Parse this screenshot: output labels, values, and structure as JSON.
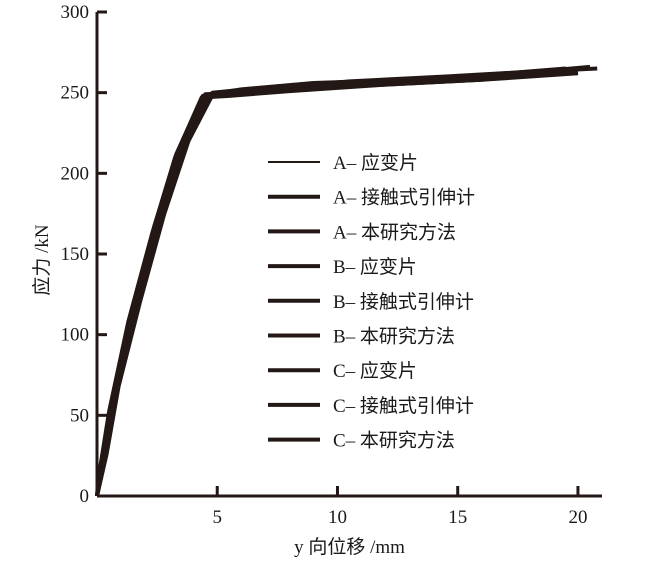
{
  "chart_data": {
    "type": "line",
    "xlabel": "y 向位移 /mm",
    "ylabel": "应力 /kN",
    "xlim": [
      0,
      21
    ],
    "ylim": [
      0,
      300
    ],
    "xticks": [
      5,
      10,
      15,
      20
    ],
    "yticks": [
      0,
      50,
      100,
      150,
      200,
      250,
      300
    ],
    "grid": false,
    "legend_placement": "center",
    "series_color": "#231815",
    "series": [
      {
        "name": "A– 应变片",
        "x": [
          0,
          0.2,
          0.7,
          1.5,
          2.5,
          3.5,
          4.6,
          5.5,
          8,
          12,
          16,
          18,
          20
        ],
        "y": [
          0,
          18,
          60,
          115,
          170,
          215,
          248,
          249,
          252,
          255,
          258,
          261,
          263
        ]
      },
      {
        "name": "A– 接触式引伸计",
        "x": [
          0,
          0.15,
          0.6,
          1.4,
          2.4,
          3.4,
          4.5,
          5.8,
          8.5,
          12.5,
          16.5,
          19
        ],
        "y": [
          0,
          15,
          58,
          113,
          168,
          214,
          249,
          250,
          254,
          257,
          261,
          264
        ]
      },
      {
        "name": "A– 本研究方法",
        "x": [
          0,
          0.25,
          0.75,
          1.6,
          2.6,
          3.6,
          4.7,
          6,
          9,
          13,
          17,
          19.5
        ],
        "y": [
          0,
          20,
          62,
          116,
          171,
          216,
          249,
          252,
          256,
          258,
          262,
          265
        ]
      },
      {
        "name": "B– 应变片",
        "x": [
          0,
          0.3,
          0.8,
          1.7,
          2.7,
          3.7,
          4.8,
          6.2,
          9.5,
          13.5,
          17.5,
          20.5
        ],
        "y": [
          0,
          22,
          64,
          118,
          172,
          218,
          250,
          252,
          256,
          259,
          262,
          266
        ]
      },
      {
        "name": "B– 接触式引伸计",
        "x": [
          0,
          0.1,
          0.55,
          1.35,
          2.35,
          3.3,
          4.4,
          5.2,
          7.5,
          11.5,
          15.5,
          18.5
        ],
        "y": [
          0,
          12,
          55,
          110,
          165,
          212,
          248,
          249,
          253,
          256,
          259,
          263
        ]
      },
      {
        "name": "B– 本研究方法",
        "x": [
          0,
          0.35,
          0.85,
          1.75,
          2.75,
          3.75,
          4.75,
          6.5,
          10,
          14,
          18
        ],
        "y": [
          0,
          24,
          66,
          119,
          173,
          219,
          249,
          250,
          255,
          258,
          261
        ]
      },
      {
        "name": "C– 应变片",
        "x": [
          0,
          0.05,
          0.5,
          1.3,
          2.3,
          3.25,
          4.35,
          5.5,
          8,
          12,
          16,
          20
        ],
        "y": [
          0,
          10,
          52,
          108,
          163,
          210,
          247,
          248,
          251,
          255,
          258,
          262
        ]
      },
      {
        "name": "C– 接触式引伸计",
        "x": [
          0,
          0.4,
          0.9,
          1.8,
          2.8,
          3.8,
          4.85,
          6.8,
          10.5,
          14.5,
          18,
          20.8
        ],
        "y": [
          0,
          26,
          68,
          121,
          175,
          220,
          250,
          252,
          257,
          260,
          263,
          265
        ]
      },
      {
        "name": "C– 本研究方法",
        "x": [
          0,
          0.2,
          0.65,
          1.45,
          2.45,
          3.45,
          4.55,
          5.9,
          8.8,
          12.8,
          16.8,
          19.8
        ],
        "y": [
          0,
          17,
          59,
          112,
          167,
          213,
          248,
          251,
          254,
          257,
          260,
          264
        ]
      }
    ]
  }
}
